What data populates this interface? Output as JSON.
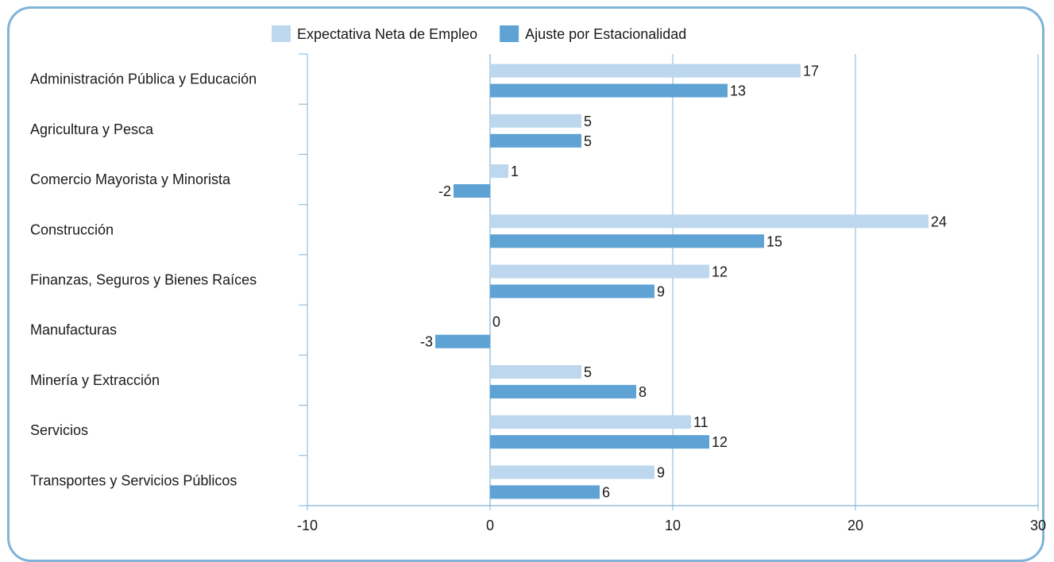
{
  "chart_data": {
    "type": "bar",
    "orientation": "horizontal",
    "categories": [
      "Administración Pública y Educación",
      "Agricultura y Pesca",
      "Comercio Mayorista y Minorista",
      "Construcción",
      "Finanzas, Seguros y Bienes Raíces",
      "Manufacturas",
      "Minería y Extracción",
      "Servicios",
      "Transportes y Servicios Públicos"
    ],
    "series": [
      {
        "name": "Expectativa Neta de Empleo",
        "color": "#bdd7ee",
        "values": [
          17,
          5,
          1,
          24,
          12,
          0,
          5,
          11,
          9
        ]
      },
      {
        "name": "Ajuste por Estacionalidad",
        "color": "#5fa3d5",
        "values": [
          13,
          5,
          -2,
          15,
          9,
          -3,
          8,
          12,
          6
        ]
      }
    ],
    "xlim": [
      -10,
      30
    ],
    "xticks": [
      -10,
      0,
      10,
      20,
      30
    ],
    "grid": "vertical",
    "legend": "top-center",
    "axis_color": "#7fb3d8"
  }
}
